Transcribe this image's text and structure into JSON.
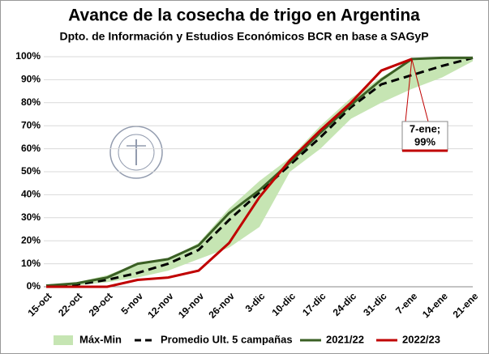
{
  "chart_data": {
    "type": "line",
    "title": "Avance de la cosecha de trigo en Argentina",
    "subtitle": "Dpto. de Información y Estudios Económicos BCR en base a SAGyP",
    "categories": [
      "15-oct",
      "22-oct",
      "29-oct",
      "5-nov",
      "12-nov",
      "19-nov",
      "26-nov",
      "3-dic",
      "10-dic",
      "17-dic",
      "24-dic",
      "31-dic",
      "7-ene",
      "14-ene",
      "21-ene"
    ],
    "series": [
      {
        "name": "Máx-Min",
        "type": "band",
        "color": "#c6e5b3",
        "values": [
          0.5,
          2,
          5,
          10,
          12,
          19,
          34,
          46,
          56,
          70,
          82,
          91,
          99,
          99.5,
          100
        ],
        "min_values": [
          0,
          0.5,
          2,
          4,
          7,
          12,
          17,
          26,
          50,
          60,
          73,
          80,
          86,
          91,
          98
        ]
      },
      {
        "name": "Promedio Ult. 5 campañas",
        "type": "dashed",
        "color": "#000000",
        "values": [
          0.5,
          1,
          3,
          6,
          10,
          16,
          29,
          41,
          53,
          65,
          78,
          88,
          92,
          96,
          99.5
        ]
      },
      {
        "name": "2021/22",
        "type": "line",
        "color": "#3a5f24",
        "values": [
          0.5,
          1.5,
          4,
          10,
          12,
          18,
          32,
          42,
          54,
          67,
          79,
          90,
          99,
          99.5,
          99.5
        ]
      },
      {
        "name": "2022/23",
        "type": "line",
        "color": "#c00000",
        "values": [
          0,
          0,
          0,
          3,
          4,
          7,
          19,
          39,
          55,
          68,
          80,
          94,
          99,
          null,
          null
        ]
      }
    ],
    "annotation": {
      "lines": [
        "7-ene;",
        "99%"
      ]
    },
    "ylim": [
      0,
      100
    ],
    "yticks": [
      {
        "value": 0,
        "label": "0%"
      },
      {
        "value": 10,
        "label": "10%"
      },
      {
        "value": 20,
        "label": "20%"
      },
      {
        "value": 30,
        "label": "30%"
      },
      {
        "value": 40,
        "label": "40%"
      },
      {
        "value": 50,
        "label": "50%"
      },
      {
        "value": 60,
        "label": "60%"
      },
      {
        "value": 70,
        "label": "70%"
      },
      {
        "value": 80,
        "label": "80%"
      },
      {
        "value": 90,
        "label": "90%"
      },
      {
        "value": 100,
        "label": "100%"
      }
    ],
    "grid": true
  }
}
